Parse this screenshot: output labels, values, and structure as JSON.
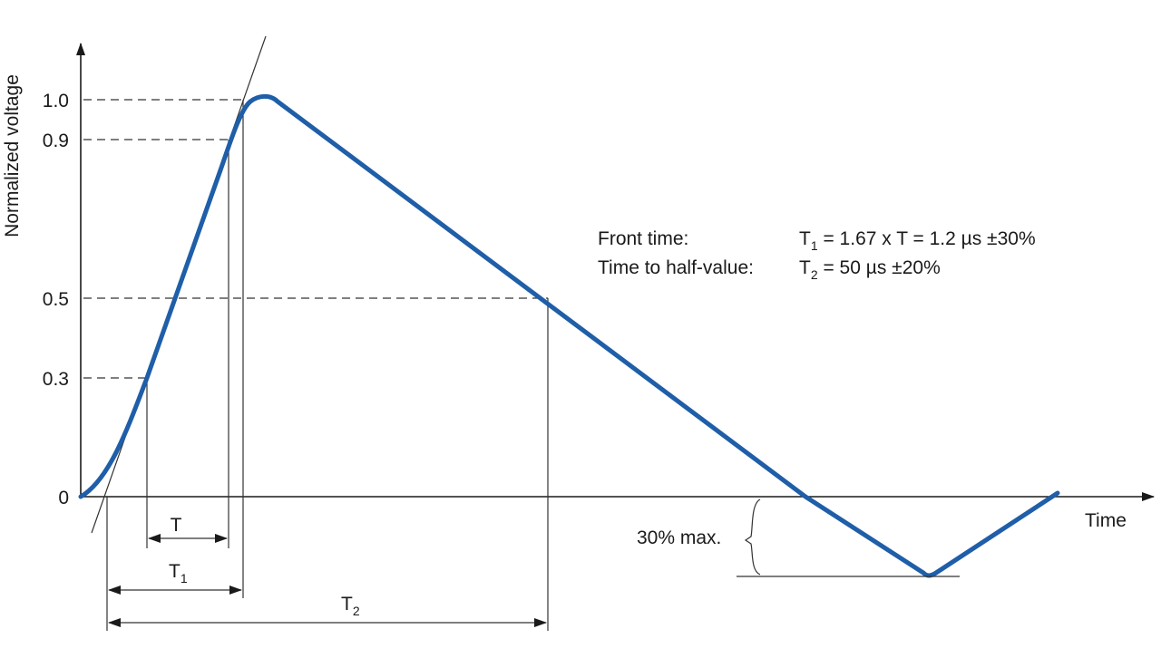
{
  "y_axis": {
    "label": "Normalized voltage",
    "ticks": [
      {
        "label": "1.0",
        "value": 1.0
      },
      {
        "label": "0.9",
        "value": 0.9
      },
      {
        "label": "0.5",
        "value": 0.5
      },
      {
        "label": "0.3",
        "value": 0.3
      },
      {
        "label": "0",
        "value": 0
      }
    ]
  },
  "x_axis": {
    "label": "Time"
  },
  "annotations": {
    "front_time_label": "Front time:",
    "half_value_label": "Time to half-value:",
    "T": "T",
    "T1_base": "T",
    "T1_sub": "1",
    "T2_base": "T",
    "T2_sub": "2",
    "undershoot": "30% max."
  },
  "formulas": {
    "front_prefix": "T",
    "front_sub": "1",
    "front_rest": " = 1.67 x T = 1.2 µs ±30%",
    "half_prefix": "T",
    "half_sub": "2",
    "half_rest": " = 50 µs ±20%"
  },
  "colors": {
    "waveform": "#1f5ea8",
    "lines": "#333333"
  }
}
